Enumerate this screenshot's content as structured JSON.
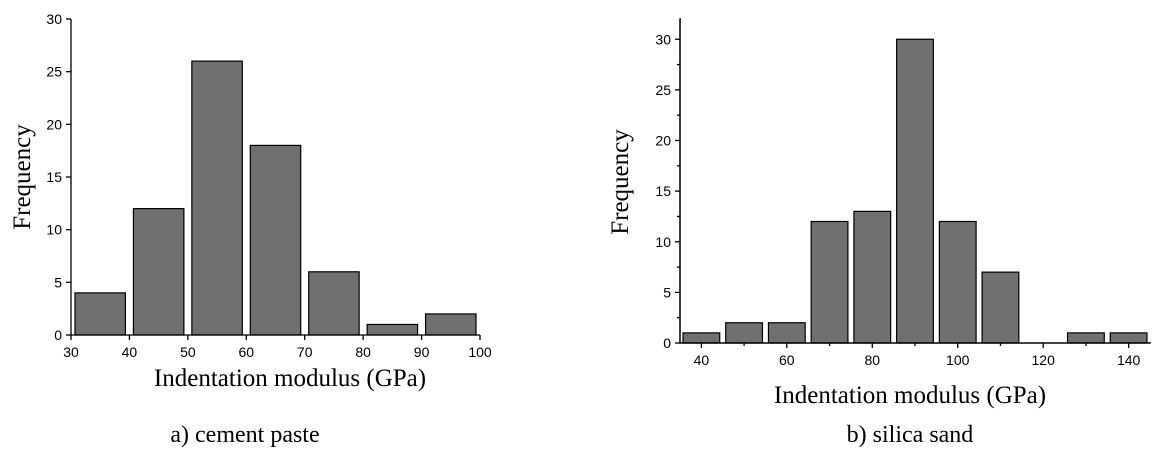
{
  "chart_data": [
    {
      "type": "bar",
      "caption": "a)  cement paste",
      "xlabel": "Indentation modulus (GPa)",
      "ylabel": "Frequency",
      "xlim": [
        30,
        100
      ],
      "ylim": [
        0,
        30
      ],
      "x_ticks": [
        30,
        40,
        50,
        60,
        70,
        80,
        90,
        100
      ],
      "y_ticks": [
        0,
        5,
        10,
        15,
        20,
        25,
        30
      ],
      "bin_width": 10,
      "bars": [
        {
          "x": 35,
          "value": 4
        },
        {
          "x": 45,
          "value": 12
        },
        {
          "x": 55,
          "value": 26
        },
        {
          "x": 65,
          "value": 18
        },
        {
          "x": 75,
          "value": 6
        },
        {
          "x": 85,
          "value": 1
        },
        {
          "x": 95,
          "value": 2
        }
      ],
      "bar_color": "#707070"
    },
    {
      "type": "bar",
      "caption": "b) silica sand",
      "xlabel": "Indentation modulus (GPa)",
      "ylabel": "Frequency",
      "xlim": [
        35,
        145
      ],
      "ylim": [
        0,
        32
      ],
      "x_ticks": [
        40,
        60,
        80,
        100,
        120,
        140
      ],
      "y_ticks": [
        0,
        5,
        10,
        15,
        20,
        25,
        30
      ],
      "bin_width": 10,
      "bars": [
        {
          "x": 40,
          "value": 1
        },
        {
          "x": 50,
          "value": 2
        },
        {
          "x": 60,
          "value": 2
        },
        {
          "x": 70,
          "value": 12
        },
        {
          "x": 80,
          "value": 13
        },
        {
          "x": 90,
          "value": 30
        },
        {
          "x": 100,
          "value": 12
        },
        {
          "x": 110,
          "value": 7
        },
        {
          "x": 120,
          "value": 0
        },
        {
          "x": 130,
          "value": 1
        },
        {
          "x": 140,
          "value": 1
        }
      ],
      "bar_color": "#707070"
    }
  ]
}
